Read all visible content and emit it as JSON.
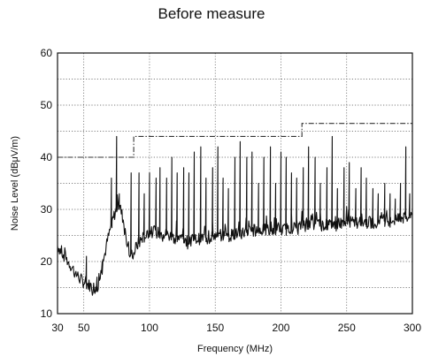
{
  "chart_data": {
    "type": "line",
    "title": "Before measure",
    "xlabel": "Frequency (MHz)",
    "ylabel": "Noise Level (dBμV/m)",
    "xlim": [
      30,
      300
    ],
    "ylim": [
      10,
      60
    ],
    "x_ticks": [
      30,
      50,
      100,
      150,
      200,
      250,
      300
    ],
    "y_ticks": [
      10,
      20,
      30,
      40,
      50,
      60
    ],
    "grid": true,
    "grid_style": "dotted",
    "x_grid_lines": [
      50,
      100,
      150,
      200,
      250
    ],
    "y_grid_lines": [
      15,
      20,
      25,
      30,
      35,
      40,
      45,
      50,
      55
    ],
    "series": [
      {
        "style": "solid",
        "color": "#111111",
        "baseline": [
          [
            30,
            23
          ],
          [
            34,
            21.5
          ],
          [
            38,
            20
          ],
          [
            42,
            18.5
          ],
          [
            46,
            17
          ],
          [
            50,
            16
          ],
          [
            54,
            15.5
          ],
          [
            58,
            15
          ],
          [
            60,
            14.8
          ],
          [
            62,
            16.5
          ],
          [
            64,
            19
          ],
          [
            66,
            21.5
          ],
          [
            68,
            24
          ],
          [
            70,
            26
          ],
          [
            72,
            28
          ],
          [
            74,
            29.5
          ],
          [
            76,
            31
          ],
          [
            78,
            30
          ],
          [
            80,
            28
          ],
          [
            82,
            25
          ],
          [
            84,
            22
          ],
          [
            86,
            21
          ],
          [
            88,
            21.5
          ],
          [
            90,
            23
          ],
          [
            95,
            24.5
          ],
          [
            100,
            25.5
          ],
          [
            110,
            25.5
          ],
          [
            120,
            24.5
          ],
          [
            130,
            24
          ],
          [
            140,
            24.5
          ],
          [
            150,
            25
          ],
          [
            160,
            25
          ],
          [
            170,
            25.5
          ],
          [
            180,
            26
          ],
          [
            190,
            26
          ],
          [
            200,
            26
          ],
          [
            210,
            26.5
          ],
          [
            220,
            27
          ],
          [
            230,
            27
          ],
          [
            240,
            27
          ],
          [
            250,
            27.5
          ],
          [
            260,
            27.5
          ],
          [
            270,
            27.5
          ],
          [
            280,
            28
          ],
          [
            290,
            28
          ],
          [
            300,
            29
          ]
        ],
        "peaks": [
          [
            52,
            21
          ],
          [
            60,
            17
          ],
          [
            64,
            20
          ],
          [
            71,
            36
          ],
          [
            75,
            44
          ],
          [
            77,
            33
          ],
          [
            86,
            37
          ],
          [
            92,
            37
          ],
          [
            96,
            33
          ],
          [
            100,
            37
          ],
          [
            105,
            36
          ],
          [
            108,
            38
          ],
          [
            113,
            36
          ],
          [
            117,
            40
          ],
          [
            121,
            37
          ],
          [
            126,
            38
          ],
          [
            130,
            37
          ],
          [
            134,
            41
          ],
          [
            139,
            42
          ],
          [
            143,
            36
          ],
          [
            148,
            38
          ],
          [
            152,
            42
          ],
          [
            156,
            36
          ],
          [
            160,
            34
          ],
          [
            165,
            40
          ],
          [
            169,
            43
          ],
          [
            174,
            40
          ],
          [
            178,
            41
          ],
          [
            183,
            35
          ],
          [
            187,
            40
          ],
          [
            192,
            42
          ],
          [
            196,
            35
          ],
          [
            200,
            41
          ],
          [
            204,
            40
          ],
          [
            208,
            37
          ],
          [
            212,
            36
          ],
          [
            217,
            38
          ],
          [
            221,
            42
          ],
          [
            226,
            40
          ],
          [
            230,
            35
          ],
          [
            235,
            38
          ],
          [
            239,
            44
          ],
          [
            243,
            34
          ],
          [
            248,
            38
          ],
          [
            252,
            39
          ],
          [
            257,
            34
          ],
          [
            261,
            38
          ],
          [
            265,
            36
          ],
          [
            270,
            34
          ],
          [
            274,
            33
          ],
          [
            279,
            35
          ],
          [
            283,
            33
          ],
          [
            287,
            32
          ],
          [
            291,
            35
          ],
          [
            295,
            42
          ],
          [
            298,
            33
          ]
        ]
      },
      {
        "style": "dash-dot",
        "color": "#333333",
        "points": [
          [
            30,
            40
          ],
          [
            88,
            40
          ],
          [
            88,
            44
          ],
          [
            216,
            44
          ],
          [
            216,
            46.5
          ],
          [
            300,
            46.5
          ]
        ]
      }
    ]
  }
}
